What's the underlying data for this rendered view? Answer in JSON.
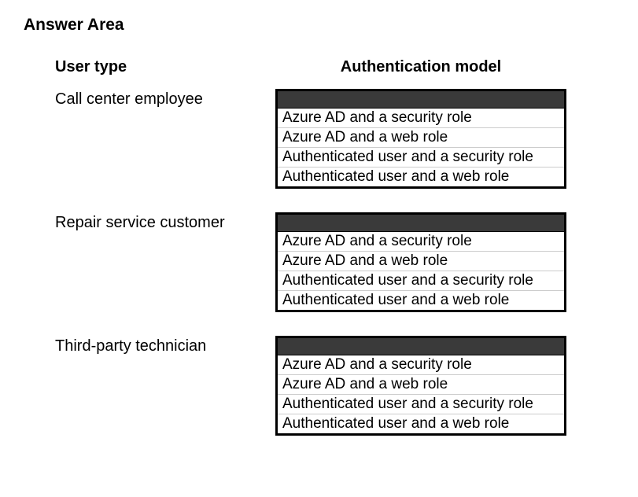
{
  "title": "Answer Area",
  "columns": {
    "left": "User type",
    "right": "Authentication model"
  },
  "rows": [
    {
      "userType": "Call center employee",
      "options": [
        "Azure AD and a security role",
        "Azure AD and a web role",
        "Authenticated user and a security role",
        "Authenticated user and a web role"
      ]
    },
    {
      "userType": "Repair service customer",
      "options": [
        "Azure AD and a security role",
        "Azure AD and a web role",
        "Authenticated user and a security role",
        "Authenticated user and a web role"
      ]
    },
    {
      "userType": "Third-party technician",
      "options": [
        "Azure AD and a security role",
        "Azure AD and a web role",
        "Authenticated user and a security role",
        "Authenticated user and a web role"
      ]
    }
  ],
  "styling": {
    "background_color": "#ffffff",
    "text_color": "#000000",
    "dropdown_header_bg": "#3a3a3a",
    "dropdown_border_color": "#000000",
    "option_divider_color": "#cccccc",
    "title_fontsize": 21,
    "header_fontsize": 20,
    "label_fontsize": 20,
    "option_fontsize": 19
  }
}
